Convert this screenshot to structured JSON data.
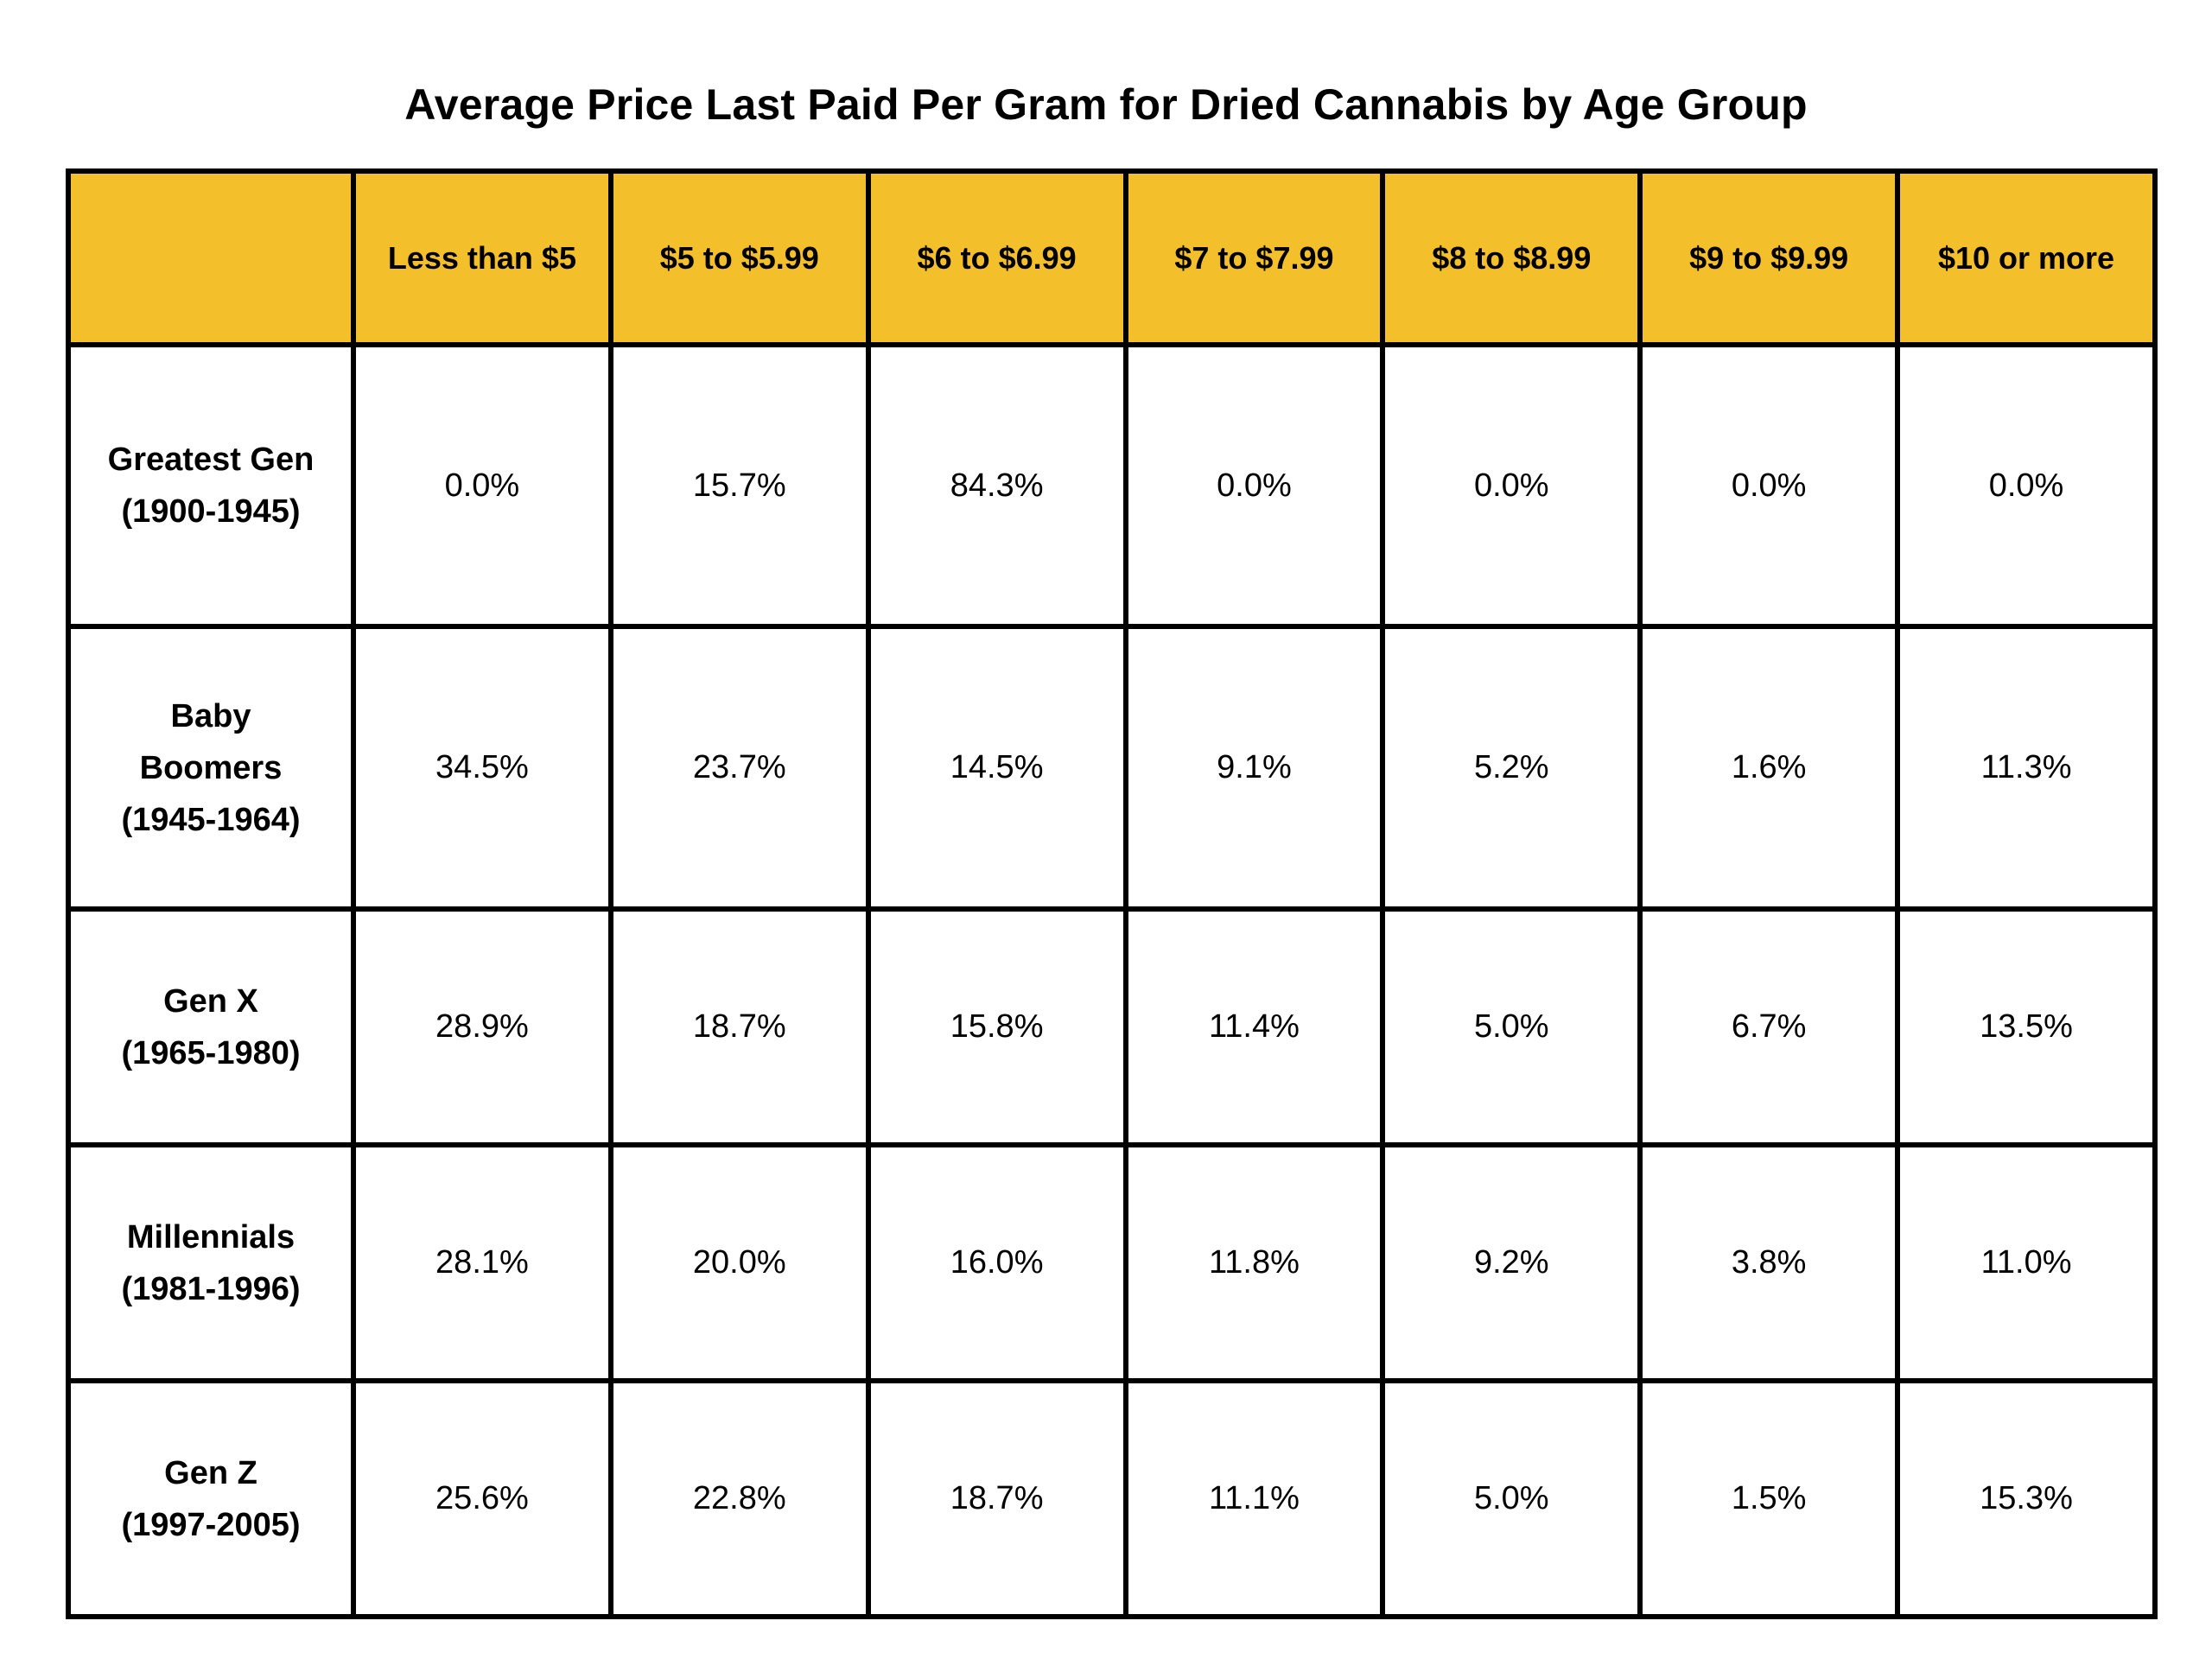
{
  "chart_data": {
    "type": "table",
    "title": "Average Price Last Paid Per Gram for Dried Cannabis by Age Group",
    "corner_label": "",
    "columns": [
      "Less than $5",
      "$5 to $5.99",
      "$6 to $6.99",
      "$7 to $7.99",
      "$8 to $8.99",
      "$9 to $9.99",
      "$10 or more"
    ],
    "rows": [
      {
        "label_lines": [
          "Greatest Gen",
          "(1900-1945)"
        ],
        "values": [
          "0.0%",
          "15.7%",
          "84.3%",
          "0.0%",
          "0.0%",
          "0.0%",
          "0.0%"
        ]
      },
      {
        "label_lines": [
          "Baby",
          "Boomers",
          "(1945-1964)"
        ],
        "values": [
          "34.5%",
          "23.7%",
          "14.5%",
          "9.1%",
          "5.2%",
          "1.6%",
          "11.3%"
        ]
      },
      {
        "label_lines": [
          "Gen X",
          "(1965-1980)"
        ],
        "values": [
          "28.9%",
          "18.7%",
          "15.8%",
          "11.4%",
          "5.0%",
          "6.7%",
          "13.5%"
        ]
      },
      {
        "label_lines": [
          "Millennials",
          "(1981-1996)"
        ],
        "values": [
          "28.1%",
          "20.0%",
          "16.0%",
          "11.8%",
          "9.2%",
          "3.8%",
          "11.0%"
        ]
      },
      {
        "label_lines": [
          "Gen Z",
          "(1997-2005)"
        ],
        "values": [
          "25.6%",
          "22.8%",
          "18.7%",
          "11.1%",
          "5.0%",
          "1.5%",
          "15.3%"
        ]
      }
    ]
  },
  "colors": {
    "header_fill": "#f3bf2a",
    "border": "#000000",
    "background": "#ffffff"
  }
}
